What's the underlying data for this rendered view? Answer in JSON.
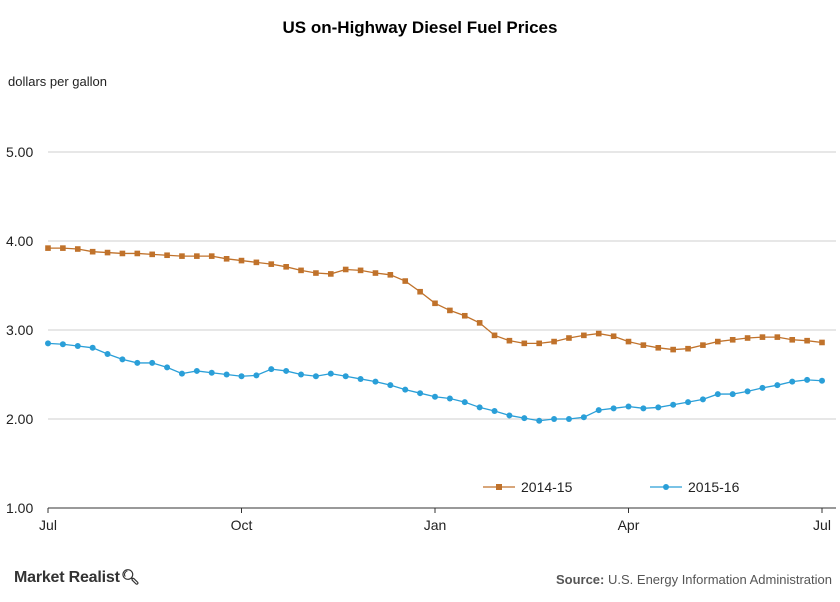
{
  "chart_data": {
    "type": "line",
    "title": "US on-Highway Diesel Fuel Prices",
    "ylabel": "dollars per gallon",
    "xlabel": "",
    "ylim": [
      1.0,
      5.0
    ],
    "yticks": [
      "1.00",
      "2.00",
      "3.00",
      "4.00",
      "5.00"
    ],
    "xticks": [
      "Jul",
      "Oct",
      "Jan",
      "Apr",
      "Jul"
    ],
    "x_range_weeks": [
      0,
      52
    ],
    "grid": true,
    "legend_position": "bottom-right",
    "series": [
      {
        "name": "2014-15",
        "color": "#c0722b",
        "marker": "square",
        "values": [
          3.92,
          3.92,
          3.91,
          3.88,
          3.87,
          3.86,
          3.86,
          3.85,
          3.84,
          3.83,
          3.83,
          3.83,
          3.8,
          3.78,
          3.76,
          3.74,
          3.71,
          3.67,
          3.64,
          3.63,
          3.68,
          3.67,
          3.64,
          3.62,
          3.55,
          3.43,
          3.3,
          3.22,
          3.16,
          3.08,
          2.94,
          2.88,
          2.85,
          2.85,
          2.87,
          2.91,
          2.94,
          2.96,
          2.93,
          2.87,
          2.83,
          2.8,
          2.78,
          2.79,
          2.83,
          2.87,
          2.89,
          2.91,
          2.92,
          2.92,
          2.89,
          2.88,
          2.86
        ]
      },
      {
        "name": "2015-16",
        "color": "#2a9fd8",
        "marker": "circle",
        "values": [
          2.85,
          2.84,
          2.82,
          2.8,
          2.73,
          2.67,
          2.63,
          2.63,
          2.58,
          2.51,
          2.54,
          2.52,
          2.5,
          2.48,
          2.49,
          2.56,
          2.54,
          2.5,
          2.48,
          2.51,
          2.48,
          2.45,
          2.42,
          2.38,
          2.33,
          2.29,
          2.25,
          2.23,
          2.19,
          2.13,
          2.09,
          2.04,
          2.01,
          1.98,
          2.0,
          2.0,
          2.02,
          2.1,
          2.12,
          2.14,
          2.12,
          2.13,
          2.16,
          2.19,
          2.22,
          2.28,
          2.28,
          2.31,
          2.35,
          2.38,
          2.42,
          2.44,
          2.43
        ]
      }
    ]
  },
  "footer": {
    "brand": "Market Realist",
    "source_label": "Source:",
    "source_text": "U.S. Energy Information Administration"
  }
}
